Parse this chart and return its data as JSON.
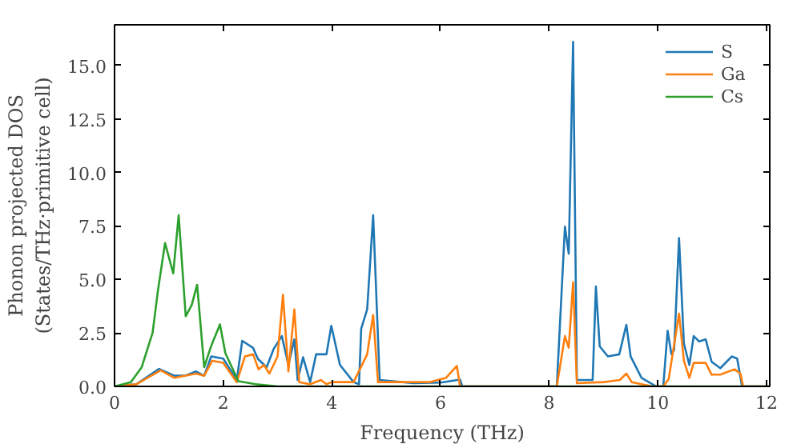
{
  "chart_data": {
    "type": "line",
    "xlabel": "Frequency (THz)",
    "ylabel": "Phonon projected DOS\n(States/THz·primitive cell)",
    "xlim": [
      0,
      12.06
    ],
    "ylim": [
      0,
      16.9
    ],
    "xticks": [
      0,
      2,
      4,
      6,
      8,
      10,
      12
    ],
    "yticks": [
      {
        "value": 0,
        "label": "0.0"
      },
      {
        "value": 2.5,
        "label": "2.5"
      },
      {
        "value": 5,
        "label": "5.0"
      },
      {
        "value": 7.5,
        "label": "7.5"
      },
      {
        "value": 10,
        "label": "10.0"
      },
      {
        "value": 12.5,
        "label": "12.5"
      },
      {
        "value": 15,
        "label": "15.0"
      }
    ],
    "grid": false,
    "legend": "top right",
    "line_style": "solid",
    "marker": "none",
    "series": [
      {
        "name": "S",
        "color": "#1f77b4",
        "x": [
          0,
          0.4,
          0.82,
          1.1,
          1.3,
          1.5,
          1.65,
          1.78,
          2.0,
          2.25,
          2.35,
          2.55,
          2.64,
          2.8,
          2.93,
          3.08,
          3.2,
          3.31,
          3.37,
          3.47,
          3.6,
          3.71,
          3.9,
          3.99,
          4.15,
          4.4,
          4.5,
          4.54,
          4.65,
          4.76,
          4.88,
          5.5,
          6.0,
          6.36,
          6.4,
          8.14,
          8.29,
          8.36,
          8.44,
          8.51,
          8.8,
          8.86,
          8.93,
          9.08,
          9.29,
          9.42,
          9.5,
          9.7,
          9.97,
          10.1,
          10.18,
          10.25,
          10.3,
          10.39,
          10.48,
          10.58,
          10.66,
          10.76,
          10.88,
          10.99,
          11.15,
          11.36,
          11.46,
          11.55,
          12.06
        ],
        "values": [
          0,
          0.1,
          0.82,
          0.5,
          0.5,
          0.7,
          0.5,
          1.4,
          1.3,
          0.3,
          2.13,
          1.8,
          1.28,
          0.9,
          1.76,
          2.35,
          1.0,
          2.2,
          0.3,
          1.36,
          0.2,
          1.5,
          1.5,
          2.83,
          1.0,
          0.2,
          0.1,
          2.7,
          3.6,
          8.0,
          0.3,
          0.15,
          0.18,
          0.32,
          0,
          0,
          7.47,
          6.2,
          16.1,
          0.3,
          0.3,
          4.67,
          1.87,
          1.4,
          1.5,
          2.88,
          1.4,
          0.4,
          0,
          0,
          2.6,
          1.5,
          1.7,
          6.93,
          2.0,
          1.0,
          2.35,
          2.1,
          2.2,
          1.15,
          0.85,
          1.4,
          1.3,
          0,
          0
        ]
      },
      {
        "name": "Ga",
        "color": "#ff7f0e",
        "x": [
          0,
          0.4,
          0.85,
          1.1,
          1.5,
          1.65,
          1.8,
          2.0,
          2.25,
          2.4,
          2.55,
          2.65,
          2.75,
          2.85,
          3.0,
          3.1,
          3.2,
          3.31,
          3.4,
          3.6,
          3.8,
          3.9,
          4.0,
          4.4,
          4.65,
          4.76,
          4.85,
          5.8,
          6.1,
          6.3,
          6.36,
          8.14,
          8.29,
          8.36,
          8.44,
          8.51,
          9.0,
          9.3,
          9.42,
          9.52,
          9.9,
          10.1,
          10.2,
          10.39,
          10.48,
          10.58,
          10.66,
          10.88,
          10.99,
          11.15,
          11.41,
          11.52,
          11.57,
          12.06
        ],
        "values": [
          0,
          0.1,
          0.75,
          0.4,
          0.6,
          0.5,
          1.2,
          1.1,
          0.2,
          1.4,
          1.5,
          0.8,
          1.0,
          0.6,
          1.4,
          4.28,
          0.7,
          3.6,
          0.2,
          0.1,
          0.3,
          0.1,
          0.2,
          0.2,
          1.5,
          3.34,
          0.2,
          0.2,
          0.4,
          0.96,
          0,
          0,
          2.35,
          1.81,
          4.87,
          0.15,
          0.2,
          0.3,
          0.6,
          0.2,
          0,
          0,
          0.35,
          3.4,
          1.2,
          0.4,
          1.1,
          1.1,
          0.55,
          0.55,
          0.8,
          0.6,
          0,
          0
        ]
      },
      {
        "name": "Cs",
        "color": "#2ca02c",
        "x": [
          0,
          0.3,
          0.5,
          0.7,
          0.8,
          0.93,
          1.08,
          1.18,
          1.31,
          1.42,
          1.52,
          1.65,
          1.78,
          1.94,
          2.04,
          2.28,
          2.6,
          3.0,
          6.4,
          12.06
        ],
        "values": [
          0,
          0.2,
          0.9,
          2.5,
          4.5,
          6.7,
          5.28,
          8.0,
          3.28,
          3.8,
          4.75,
          0.9,
          1.9,
          2.9,
          1.55,
          0.24,
          0.1,
          0,
          0,
          0
        ]
      }
    ]
  }
}
